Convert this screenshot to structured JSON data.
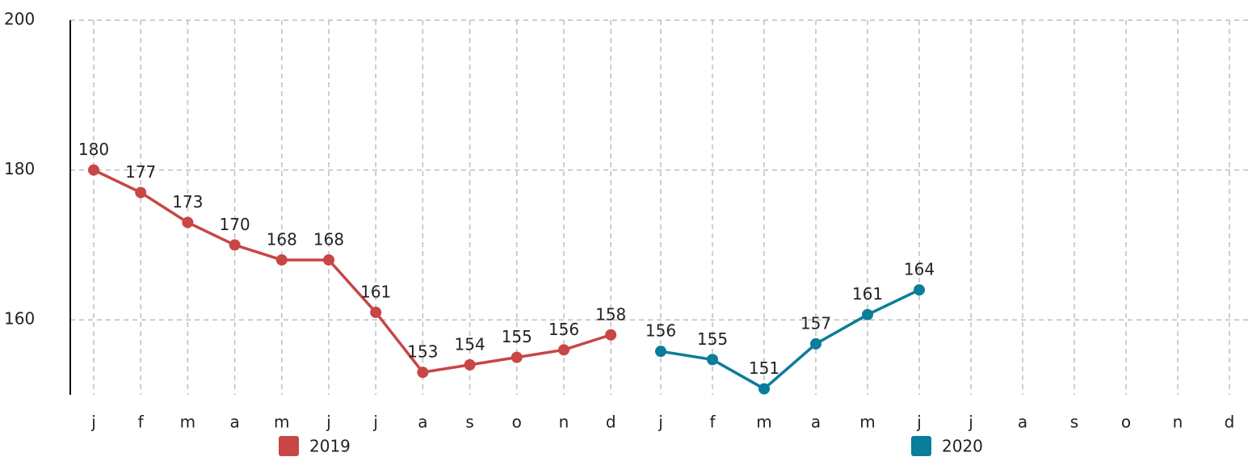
{
  "chart_data": {
    "type": "line",
    "categories": [
      "j",
      "f",
      "m",
      "a",
      "m",
      "j",
      "j",
      "a",
      "s",
      "o",
      "n",
      "d",
      "j",
      "f",
      "m",
      "a",
      "m",
      "j",
      "j",
      "a",
      "s",
      "o",
      "n",
      "d"
    ],
    "series": [
      {
        "name": "2019",
        "color": "#c84646",
        "values": [
          180,
          177,
          173,
          170,
          168,
          168,
          161,
          153,
          154,
          155,
          156,
          158,
          null,
          null,
          null,
          null,
          null,
          null,
          null,
          null,
          null,
          null,
          null,
          null
        ]
      },
      {
        "name": "2020",
        "color": "#0a7d9a",
        "values": [
          null,
          null,
          null,
          null,
          null,
          null,
          null,
          null,
          null,
          null,
          null,
          null,
          155.8,
          154.7,
          150.8,
          156.8,
          160.7,
          164,
          null,
          null,
          null,
          null,
          null,
          null
        ],
        "value_labels": [
          null,
          null,
          null,
          null,
          null,
          null,
          null,
          null,
          null,
          null,
          null,
          null,
          "156",
          "155",
          "151",
          "157",
          "161",
          "164",
          null,
          null,
          null,
          null,
          null,
          null
        ]
      }
    ],
    "ylim": [
      150,
      200
    ],
    "yticks": [
      160,
      180,
      200
    ],
    "grid": true
  }
}
